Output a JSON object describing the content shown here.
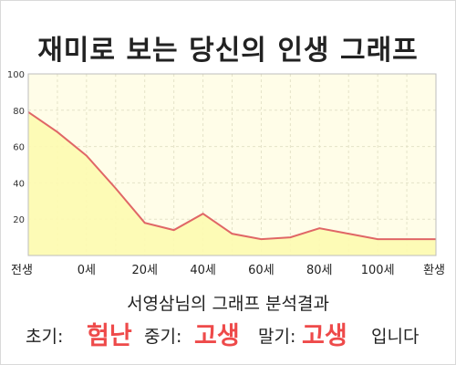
{
  "title": "재미로 보는 당신의 인생 그래프",
  "subtitle": "서영삼님의 그래프 분석결과",
  "result": {
    "early_label": "초기:",
    "early_value": "험난",
    "mid_label": "중기:",
    "mid_value": "고생",
    "late_label": "말기:",
    "late_value": "고생",
    "suffix": "입니다"
  },
  "colors": {
    "line": "#e06666",
    "fill": "#fdfbb0",
    "plot_bg": "#fffde8",
    "emphasis": "#ee4a4a"
  },
  "chart_data": {
    "type": "area",
    "categories": [
      "전생",
      "0세",
      "20세",
      "40세",
      "60세",
      "80세",
      "100세",
      "환생"
    ],
    "x": [
      -20,
      -10,
      0,
      10,
      20,
      30,
      40,
      50,
      60,
      70,
      80,
      90,
      100,
      110,
      120
    ],
    "values": [
      79,
      68,
      55,
      37,
      18,
      14,
      23,
      12,
      9,
      10,
      15,
      12,
      9,
      9,
      9
    ],
    "ylim": [
      0,
      100
    ],
    "yticks": [
      20,
      40,
      60,
      80,
      100
    ],
    "xlim": [
      -20,
      120
    ],
    "grid": true,
    "title": "",
    "xlabel": "",
    "ylabel": ""
  }
}
